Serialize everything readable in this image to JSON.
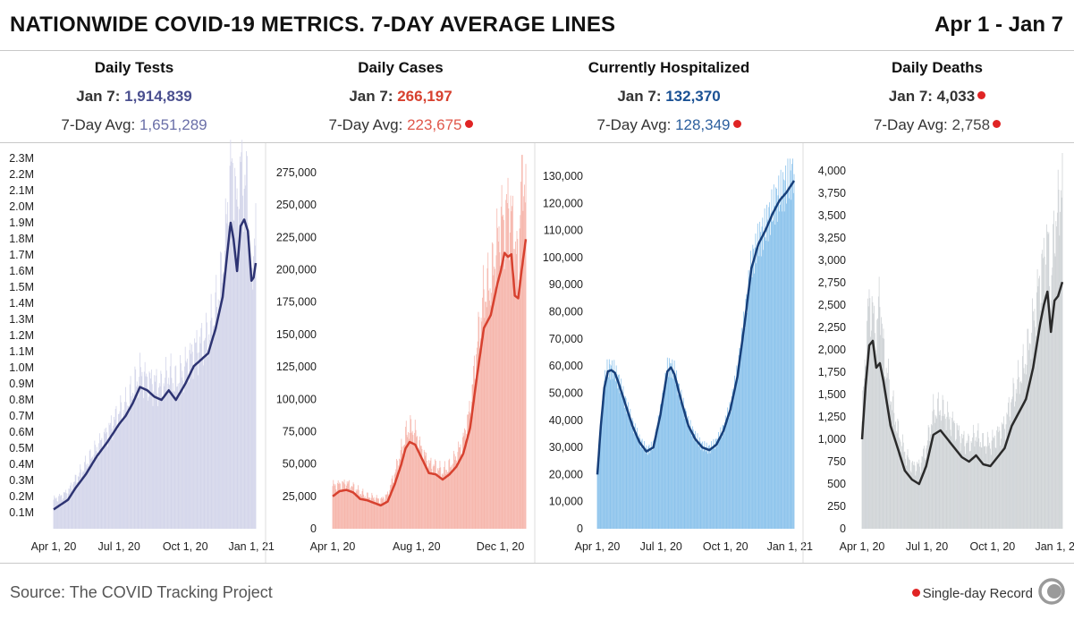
{
  "header": {
    "title": "NATIONWIDE COVID-19 METRICS. 7-DAY AVERAGE LINES",
    "date_range": "Apr 1 - Jan 7"
  },
  "colors": {
    "tests_line": "#2d3372",
    "tests_bar": "#d3d5ea",
    "tests_value": "#4a4f8f",
    "tests_avg": "#6a6fa8",
    "cases_line": "#d7412f",
    "cases_bar": "#f6b6ac",
    "cases_value": "#d7412f",
    "cases_avg": "#e0574a",
    "hosp_line": "#173f7a",
    "hosp_bar": "#8cc3ec",
    "hosp_value": "#1a5194",
    "hosp_avg": "#2c5f9e",
    "deaths_line": "#2a2a2a",
    "deaths_bar": "#cfd3d6",
    "deaths_value": "#333333",
    "deaths_avg": "#444444",
    "record": "#e02424"
  },
  "panels": [
    {
      "name": "Daily Tests",
      "latest_label": "Jan 7: ",
      "latest_value": "1,914,839",
      "latest_record": false,
      "avg_label": "7-Day Avg: ",
      "avg_value": "1,651,289",
      "avg_record": false
    },
    {
      "name": "Daily Cases",
      "latest_label": "Jan 7: ",
      "latest_value": "266,197",
      "latest_record": false,
      "avg_label": "7-Day Avg: ",
      "avg_value": "223,675",
      "avg_record": true
    },
    {
      "name": "Currently Hospitalized",
      "latest_label": "Jan 7: ",
      "latest_value": "132,370",
      "latest_record": false,
      "avg_label": "7-Day Avg: ",
      "avg_value": "128,349",
      "avg_record": true
    },
    {
      "name": "Daily Deaths",
      "latest_label": "Jan 7: ",
      "latest_value": "4,033",
      "latest_record": true,
      "avg_label": "7-Day Avg: ",
      "avg_value": "2,758",
      "avg_record": true
    }
  ],
  "footer": {
    "source": "Source: The COVID Tracking Project",
    "legend": "Single-day Record"
  },
  "chart_data": [
    {
      "type": "bar",
      "title": "Daily Tests",
      "ylim": [
        0,
        2300000
      ],
      "y_ticks": [
        100000,
        200000,
        300000,
        400000,
        500000,
        600000,
        700000,
        800000,
        900000,
        1000000,
        1100000,
        1200000,
        1300000,
        1400000,
        1500000,
        1600000,
        1700000,
        1800000,
        1900000,
        2000000,
        2100000,
        2200000,
        2300000
      ],
      "y_tick_labels": [
        "0.1M",
        "0.2M",
        "0.3M",
        "0.4M",
        "0.5M",
        "0.6M",
        "0.7M",
        "0.8M",
        "0.9M",
        "1.0M",
        "1.1M",
        "1.2M",
        "1.3M",
        "1.4M",
        "1.5M",
        "1.6M",
        "1.7M",
        "1.8M",
        "1.9M",
        "2.0M",
        "2.1M",
        "2.2M",
        "2.3M"
      ],
      "x_ticks": [
        0,
        91,
        183,
        275
      ],
      "x_tick_labels": [
        "Apr 1, 20",
        "Jul 1, 20",
        "Oct 1, 20",
        "Jan 1, 21"
      ],
      "x_range": [
        0,
        281
      ],
      "avg_series": {
        "name": "7-Day Avg",
        "x": [
          0,
          10,
          20,
          30,
          45,
          60,
          75,
          91,
          100,
          110,
          120,
          130,
          140,
          150,
          160,
          170,
          183,
          195,
          205,
          215,
          225,
          235,
          240,
          246,
          250,
          255,
          260,
          265,
          270,
          275,
          278,
          281
        ],
        "y": [
          120000,
          150000,
          180000,
          250000,
          340000,
          450000,
          540000,
          650000,
          700000,
          780000,
          880000,
          860000,
          820000,
          800000,
          860000,
          800000,
          900000,
          1010000,
          1050000,
          1090000,
          1240000,
          1440000,
          1650000,
          1900000,
          1800000,
          1600000,
          1880000,
          1920000,
          1850000,
          1540000,
          1560000,
          1650000
        ]
      },
      "daily_series": {
        "name": "Daily",
        "x": [
          0,
          10,
          20,
          30,
          45,
          60,
          75,
          91,
          100,
          110,
          120,
          130,
          140,
          150,
          160,
          170,
          183,
          195,
          205,
          215,
          225,
          235,
          240,
          246,
          250,
          255,
          260,
          265,
          270,
          275,
          278,
          281
        ],
        "y": [
          180000,
          200000,
          230000,
          300000,
          400000,
          500000,
          600000,
          720000,
          760000,
          860000,
          960000,
          920000,
          900000,
          880000,
          960000,
          900000,
          1000000,
          1100000,
          1150000,
          1200000,
          1350000,
          1600000,
          1850000,
          2240000,
          2200000,
          1950000,
          2230000,
          2150000,
          2100000,
          1400000,
          1800000,
          1910000
        ]
      }
    },
    {
      "type": "bar",
      "title": "Daily Cases",
      "ylim": [
        0,
        275000
      ],
      "y_ticks": [
        0,
        25000,
        50000,
        75000,
        100000,
        125000,
        150000,
        175000,
        200000,
        225000,
        250000,
        275000
      ],
      "y_tick_labels": [
        "0",
        "25,000",
        "50,000",
        "75,000",
        "100,000",
        "125,000",
        "150,000",
        "175,000",
        "200,000",
        "225,000",
        "250,000",
        "275,000"
      ],
      "x_ticks": [
        0,
        122,
        244
      ],
      "x_tick_labels": [
        "Apr 1, 20",
        "Aug 1, 20",
        "Dec 1, 20"
      ],
      "x_range": [
        0,
        281
      ],
      "avg_series": {
        "name": "7-Day Avg",
        "x": [
          0,
          10,
          20,
          30,
          40,
          50,
          60,
          70,
          80,
          90,
          100,
          106,
          112,
          120,
          130,
          140,
          150,
          160,
          170,
          180,
          190,
          200,
          210,
          220,
          230,
          240,
          245,
          250,
          255,
          260,
          265,
          270,
          275,
          281
        ],
        "y": [
          25000,
          29000,
          30000,
          28000,
          23000,
          22000,
          20000,
          18000,
          21000,
          34000,
          50000,
          62000,
          67000,
          65000,
          54000,
          43000,
          42000,
          38000,
          42000,
          48000,
          58000,
          78000,
          118000,
          155000,
          165000,
          190000,
          200000,
          213000,
          210000,
          212000,
          180000,
          178000,
          200000,
          223675
        ]
      },
      "daily_series": {
        "name": "Daily",
        "x": [
          0,
          10,
          20,
          30,
          40,
          50,
          60,
          70,
          80,
          90,
          100,
          106,
          112,
          120,
          130,
          140,
          150,
          160,
          170,
          180,
          190,
          200,
          210,
          220,
          230,
          240,
          245,
          250,
          255,
          260,
          265,
          270,
          275,
          281
        ],
        "y": [
          33000,
          34000,
          35000,
          32000,
          28000,
          25000,
          24000,
          22000,
          26000,
          42000,
          60000,
          72000,
          78000,
          74000,
          60000,
          50000,
          48000,
          44000,
          48000,
          56000,
          68000,
          92000,
          140000,
          180000,
          190000,
          220000,
          240000,
          230000,
          250000,
          240000,
          220000,
          200000,
          280000,
          266197
        ]
      }
    },
    {
      "type": "area",
      "title": "Currently Hospitalized",
      "ylim": [
        0,
        130000
      ],
      "y_ticks": [
        0,
        10000,
        20000,
        30000,
        40000,
        50000,
        60000,
        70000,
        80000,
        90000,
        100000,
        110000,
        120000,
        130000
      ],
      "y_tick_labels": [
        "0",
        "10,000",
        "20,000",
        "30,000",
        "40,000",
        "50,000",
        "60,000",
        "70,000",
        "80,000",
        "90,000",
        "100,000",
        "110,000",
        "120,000",
        "130,000"
      ],
      "x_ticks": [
        0,
        91,
        183,
        275
      ],
      "x_tick_labels": [
        "Apr 1, 20",
        "Jul 1, 20",
        "Oct 1, 20",
        "Jan 1, 21"
      ],
      "x_range": [
        0,
        281
      ],
      "avg_series": {
        "name": "7-Day Avg",
        "x": [
          0,
          5,
          10,
          15,
          20,
          25,
          30,
          40,
          50,
          60,
          70,
          80,
          90,
          100,
          105,
          110,
          120,
          130,
          140,
          150,
          160,
          170,
          180,
          190,
          200,
          210,
          220,
          230,
          240,
          250,
          260,
          270,
          281
        ],
        "y": [
          20000,
          38000,
          52000,
          58000,
          58500,
          57500,
          54000,
          46000,
          38000,
          32000,
          28500,
          30000,
          42000,
          58000,
          59500,
          57000,
          47000,
          38000,
          33000,
          30000,
          29000,
          31000,
          36000,
          44000,
          56000,
          75000,
          96000,
          105000,
          110000,
          116000,
          121000,
          124000,
          128349
        ]
      },
      "daily_series": {
        "name": "Daily",
        "x": [
          0,
          5,
          10,
          15,
          20,
          25,
          30,
          40,
          50,
          60,
          70,
          80,
          90,
          100,
          105,
          110,
          120,
          130,
          140,
          150,
          160,
          170,
          180,
          190,
          200,
          210,
          220,
          230,
          240,
          250,
          260,
          270,
          281
        ],
        "y": [
          21000,
          39000,
          54000,
          59500,
          59000,
          58000,
          55000,
          47000,
          39000,
          33000,
          29000,
          30500,
          43000,
          59000,
          60000,
          58000,
          48000,
          39000,
          34000,
          30500,
          29500,
          32000,
          37000,
          45000,
          58000,
          77000,
          98000,
          106000,
          111000,
          118000,
          123000,
          127000,
          132370
        ]
      }
    },
    {
      "type": "bar",
      "title": "Daily Deaths",
      "ylim": [
        0,
        4000
      ],
      "y_ticks": [
        0,
        250,
        500,
        750,
        1000,
        1250,
        1500,
        1750,
        2000,
        2250,
        2500,
        2750,
        3000,
        3250,
        3500,
        3750,
        4000
      ],
      "y_tick_labels": [
        "0",
        "250",
        "500",
        "750",
        "1,000",
        "1,250",
        "1,500",
        "1,750",
        "2,000",
        "2,250",
        "2,500",
        "2,750",
        "3,000",
        "3,250",
        "3,500",
        "3,750",
        "4,000"
      ],
      "x_ticks": [
        0,
        91,
        183,
        275
      ],
      "x_tick_labels": [
        "Apr 1, 20",
        "Jul 1, 20",
        "Oct 1, 20",
        "Jan 1, 21"
      ],
      "x_range": [
        0,
        281
      ],
      "avg_series": {
        "name": "7-Day Avg",
        "x": [
          0,
          5,
          10,
          15,
          20,
          25,
          30,
          40,
          50,
          60,
          70,
          80,
          90,
          100,
          110,
          120,
          130,
          140,
          150,
          160,
          170,
          180,
          190,
          200,
          210,
          220,
          230,
          240,
          250,
          255,
          260,
          265,
          270,
          275,
          281
        ],
        "y": [
          1000,
          1600,
          2050,
          2100,
          1800,
          1850,
          1650,
          1150,
          900,
          650,
          550,
          500,
          700,
          1050,
          1100,
          1000,
          900,
          800,
          750,
          820,
          720,
          700,
          800,
          900,
          1150,
          1300,
          1450,
          1800,
          2300,
          2500,
          2650,
          2200,
          2550,
          2600,
          2758
        ]
      },
      "daily_series": {
        "name": "Daily",
        "x": [
          0,
          5,
          10,
          15,
          20,
          25,
          30,
          40,
          50,
          60,
          70,
          80,
          90,
          100,
          110,
          120,
          130,
          140,
          150,
          160,
          170,
          180,
          190,
          200,
          210,
          220,
          230,
          240,
          250,
          255,
          260,
          265,
          270,
          275,
          281
        ],
        "y": [
          1200,
          2000,
          2550,
          2400,
          2100,
          2650,
          2000,
          1500,
          1100,
          850,
          700,
          700,
          900,
          1300,
          1350,
          1250,
          1150,
          1000,
          950,
          1050,
          950,
          950,
          1050,
          1150,
          1450,
          1650,
          1900,
          2300,
          2800,
          3000,
          3250,
          2600,
          3400,
          3500,
          4033
        ]
      }
    }
  ]
}
